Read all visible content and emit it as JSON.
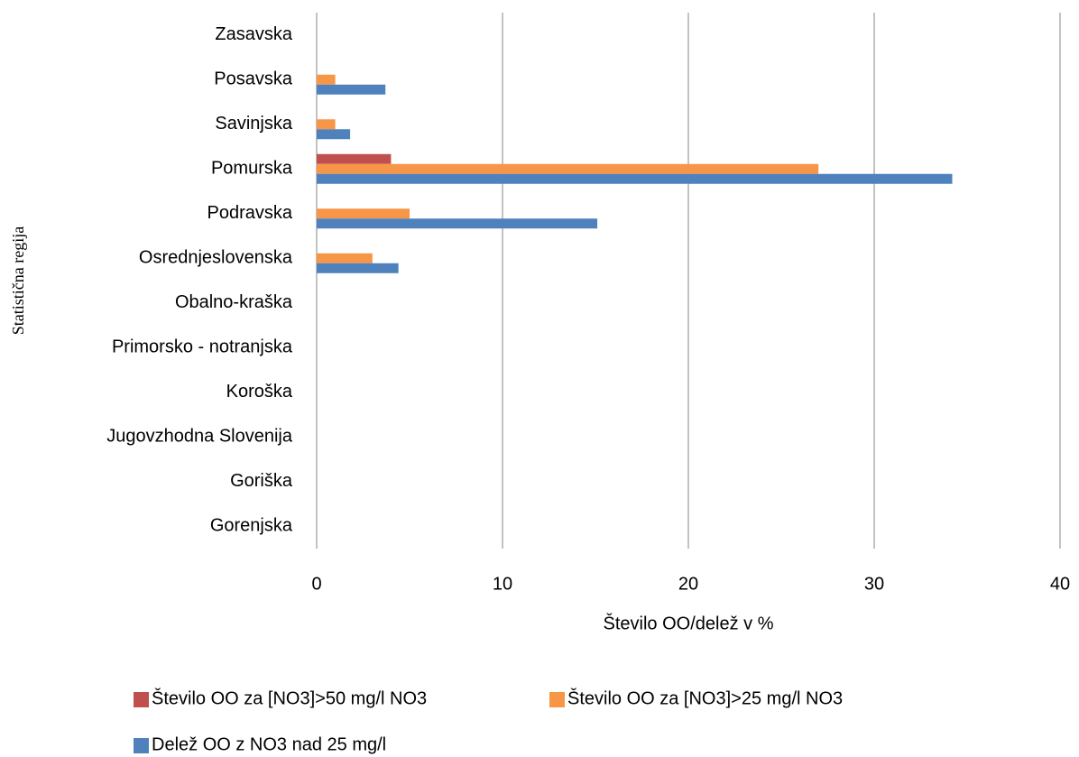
{
  "chart_data": {
    "type": "barh",
    "x_label": "Število OO/delež  v %",
    "y_label": "Statistična regija",
    "categories": [
      "Zasavska",
      "Posavska",
      "Savinjska",
      "Pomurska",
      "Podravska",
      "Osrednjeslovenska",
      "Obalno-kraška",
      "Primorsko - notranjska",
      "Koroška",
      "Jugovzhodna Slovenija",
      "Goriška",
      "Gorenjska"
    ],
    "series": [
      {
        "name": "Število OO za [NO3]>50 mg/l NO3",
        "color": "#c0504d",
        "values": [
          0,
          0,
          0,
          4,
          0,
          0,
          0,
          0,
          0,
          0,
          0,
          0
        ]
      },
      {
        "name": "Število OO za [NO3]>25 mg/l NO3",
        "color": "#f79646",
        "values": [
          0,
          1,
          1,
          27,
          5,
          3,
          0,
          0,
          0,
          0,
          0,
          0
        ]
      },
      {
        "name": "Delež OO z NO3 nad 25 mg/l",
        "color": "#4f81bd",
        "values": [
          0,
          3.7,
          1.8,
          34.2,
          15.1,
          4.4,
          0,
          0,
          0,
          0,
          0,
          0
        ]
      }
    ],
    "xlim": [
      0,
      40
    ],
    "xticks": [
      0,
      10,
      20,
      30,
      40
    ],
    "grid": true,
    "legend": "bottom"
  }
}
